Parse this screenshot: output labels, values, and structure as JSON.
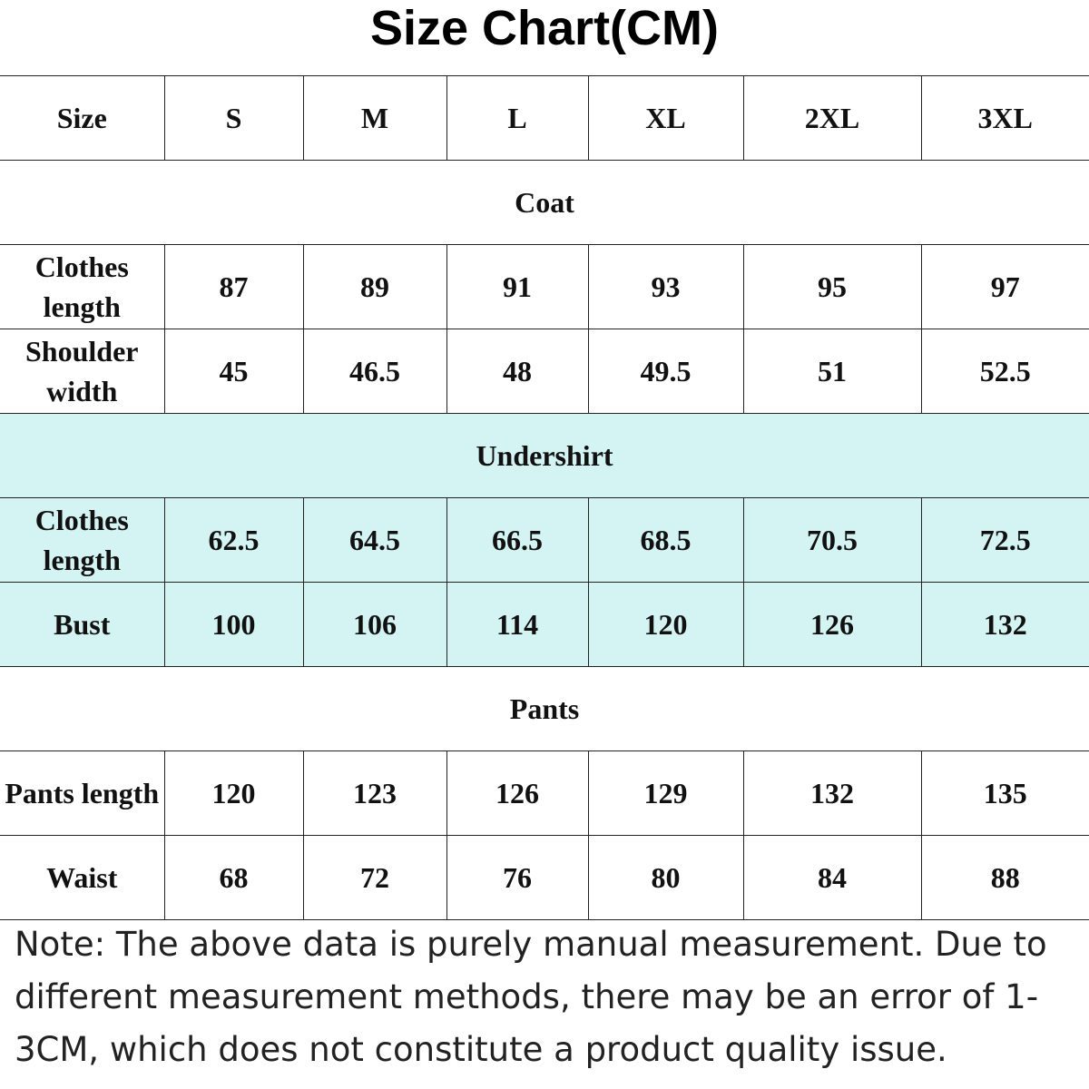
{
  "title": "Size Chart(CM)",
  "table": {
    "header": [
      "Size",
      "S",
      "M",
      "L",
      "XL",
      "2XL",
      "3XL"
    ],
    "sections": [
      {
        "name": "Coat",
        "rows": [
          {
            "label": "Clothes length",
            "values": [
              87,
              89,
              91,
              93,
              95,
              97
            ]
          },
          {
            "label": "Shoulder width",
            "values": [
              45,
              46.5,
              48,
              49.5,
              51,
              52.5
            ]
          }
        ]
      },
      {
        "name": "Undershirt",
        "highlight": true,
        "rows": [
          {
            "label": "Clothes length",
            "values": [
              62.5,
              64.5,
              66.5,
              68.5,
              70.5,
              72.5
            ]
          },
          {
            "label": "Bust",
            "values": [
              100,
              106,
              114,
              120,
              126,
              132
            ]
          }
        ]
      },
      {
        "name": "Pants",
        "rows": [
          {
            "label": "Pants length",
            "values": [
              120,
              123,
              126,
              129,
              132,
              135
            ]
          },
          {
            "label": "Waist",
            "values": [
              68,
              72,
              76,
              80,
              84,
              88
            ]
          }
        ]
      }
    ]
  },
  "note": "Note: The above data is purely manual measurement. Due to different measurement methods, there may be an error of 1-3CM, which does not constitute a product quality issue."
}
